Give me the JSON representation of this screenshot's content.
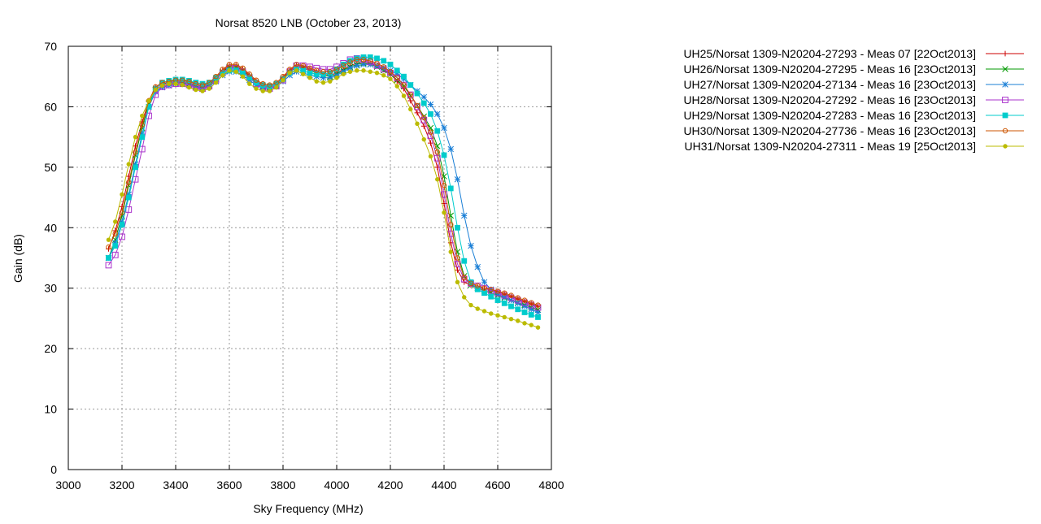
{
  "chart_data": {
    "type": "line",
    "title": "Norsat 8520 LNB (October 23, 2013)",
    "xlabel": "Sky Frequency (MHz)",
    "ylabel": "Gain (dB)",
    "xlim": [
      3000,
      4800
    ],
    "ylim": [
      0,
      70
    ],
    "xticks": [
      3000,
      3200,
      3400,
      3600,
      3800,
      4000,
      4200,
      4400,
      4600,
      4800
    ],
    "yticks": [
      0,
      10,
      20,
      30,
      40,
      50,
      60,
      70
    ],
    "grid": true,
    "legend_position": "right",
    "x": [
      3150,
      3175,
      3200,
      3225,
      3250,
      3275,
      3300,
      3325,
      3350,
      3375,
      3400,
      3425,
      3450,
      3475,
      3500,
      3525,
      3550,
      3575,
      3600,
      3625,
      3650,
      3675,
      3700,
      3725,
      3750,
      3775,
      3800,
      3825,
      3850,
      3875,
      3900,
      3925,
      3950,
      3975,
      4000,
      4025,
      4050,
      4075,
      4100,
      4125,
      4150,
      4175,
      4200,
      4225,
      4250,
      4275,
      4300,
      4325,
      4350,
      4375,
      4400,
      4425,
      4450,
      4475,
      4500,
      4525,
      4550,
      4575,
      4600,
      4625,
      4650,
      4675,
      4700,
      4725,
      4750
    ],
    "series": [
      {
        "name": "UH25/Norsat 1309-N20204-27293 - Meas 07 [22Oct2013]",
        "color": "#cc0000",
        "marker": "plus",
        "values": [
          36.5,
          39.5,
          43.5,
          48.5,
          53.5,
          57.5,
          61.0,
          63.2,
          63.8,
          64.0,
          64.2,
          64.2,
          64.0,
          63.6,
          63.4,
          63.8,
          64.8,
          66.0,
          66.8,
          66.8,
          66.2,
          65.2,
          64.2,
          63.6,
          63.4,
          63.8,
          64.8,
          66.0,
          66.8,
          66.6,
          66.2,
          65.8,
          65.4,
          65.2,
          65.6,
          66.2,
          66.8,
          67.2,
          67.4,
          67.2,
          66.8,
          66.2,
          65.4,
          64.2,
          63.0,
          61.0,
          59.0,
          56.8,
          54.0,
          50.0,
          44.0,
          37.5,
          33.0,
          31.0,
          30.5,
          30.2,
          30.0,
          29.7,
          29.4,
          29.0,
          28.6,
          28.2,
          27.8,
          27.4,
          27.0
        ]
      },
      {
        "name": "UH26/Norsat 1309-N20204-27295 - Meas 16 [23Oct2013]",
        "color": "#009900",
        "marker": "cross",
        "values": [
          35.0,
          38.0,
          42.0,
          47.0,
          52.0,
          56.5,
          60.5,
          62.8,
          63.5,
          63.8,
          64.0,
          64.0,
          63.8,
          63.4,
          63.2,
          63.6,
          64.6,
          65.8,
          66.6,
          66.6,
          66.0,
          65.0,
          64.0,
          63.4,
          63.2,
          63.6,
          64.6,
          65.8,
          66.6,
          66.4,
          66.0,
          65.6,
          65.2,
          65.0,
          65.4,
          66.0,
          66.6,
          67.0,
          67.2,
          67.0,
          66.6,
          66.0,
          65.4,
          64.4,
          63.4,
          61.8,
          60.2,
          58.4,
          56.5,
          53.5,
          48.5,
          42.0,
          36.0,
          32.0,
          30.5,
          30.0,
          29.6,
          29.2,
          28.8,
          28.4,
          28.0,
          27.6,
          27.2,
          26.8,
          26.4
        ]
      },
      {
        "name": "UH27/Norsat 1309-N20204-27134 - Meas 16 [23Oct2013]",
        "color": "#1a7fd6",
        "marker": "star",
        "values": [
          35.0,
          37.5,
          41.0,
          45.5,
          50.5,
          55.5,
          60.0,
          62.5,
          63.2,
          63.5,
          63.8,
          63.8,
          63.6,
          63.3,
          63.1,
          63.4,
          64.2,
          65.2,
          65.8,
          65.8,
          65.2,
          64.4,
          63.6,
          63.2,
          63.0,
          63.4,
          64.2,
          65.2,
          65.8,
          65.6,
          65.2,
          65.0,
          64.8,
          64.8,
          65.2,
          65.8,
          66.4,
          66.8,
          67.0,
          67.0,
          66.8,
          66.4,
          66.0,
          65.4,
          64.6,
          63.6,
          62.6,
          61.6,
          60.4,
          58.8,
          56.5,
          53.0,
          48.0,
          42.0,
          37.0,
          33.5,
          31.0,
          29.8,
          29.0,
          28.5,
          28.0,
          27.5,
          27.0,
          26.5,
          26.0
        ]
      },
      {
        "name": "UH28/Norsat 1309-N20204-27292 - Meas 16 [23Oct2013]",
        "color": "#aa33cc",
        "marker": "square-open",
        "values": [
          33.8,
          35.5,
          38.5,
          43.0,
          48.0,
          53.0,
          58.5,
          62.0,
          63.3,
          63.6,
          63.8,
          63.8,
          63.6,
          63.2,
          63.0,
          63.4,
          64.4,
          65.6,
          66.4,
          66.4,
          65.8,
          64.8,
          63.8,
          63.2,
          63.0,
          63.4,
          64.4,
          65.8,
          66.8,
          66.8,
          66.6,
          66.4,
          66.2,
          66.2,
          66.6,
          67.2,
          67.8,
          68.0,
          67.8,
          67.4,
          66.8,
          66.2,
          65.6,
          64.8,
          63.6,
          62.0,
          60.0,
          57.8,
          55.2,
          51.5,
          45.5,
          39.0,
          34.0,
          31.5,
          30.8,
          30.4,
          30.0,
          29.6,
          29.2,
          28.8,
          28.4,
          28.0,
          27.6,
          27.2,
          26.8
        ]
      },
      {
        "name": "UH29/Norsat 1309-N20204-27283 - Meas 16 [23Oct2013]",
        "color": "#00cccc",
        "marker": "square-filled",
        "values": [
          35.0,
          37.0,
          40.5,
          45.0,
          50.0,
          55.0,
          60.0,
          63.0,
          64.0,
          64.3,
          64.5,
          64.5,
          64.3,
          64.0,
          63.8,
          64.0,
          64.8,
          65.6,
          66.0,
          66.0,
          65.6,
          64.8,
          64.0,
          63.6,
          63.4,
          63.8,
          64.6,
          65.6,
          66.2,
          66.0,
          65.6,
          65.4,
          65.4,
          65.6,
          66.2,
          67.0,
          67.6,
          68.0,
          68.2,
          68.2,
          68.0,
          67.6,
          67.0,
          66.0,
          65.0,
          63.6,
          62.2,
          60.6,
          58.8,
          56.0,
          52.0,
          46.5,
          40.0,
          34.5,
          31.0,
          29.8,
          29.2,
          28.6,
          28.0,
          27.5,
          27.0,
          26.5,
          26.0,
          25.6,
          25.2
        ]
      },
      {
        "name": "UH30/Norsat 1309-N20204-27736 - Meas 16 [23Oct2013]",
        "color": "#cc5500",
        "marker": "circle-open",
        "values": [
          36.8,
          39.0,
          42.5,
          47.5,
          52.5,
          57.0,
          61.0,
          63.3,
          64.0,
          64.2,
          64.4,
          64.4,
          64.2,
          63.8,
          63.6,
          64.0,
          65.0,
          66.2,
          67.0,
          67.0,
          66.4,
          65.4,
          64.4,
          63.8,
          63.6,
          64.0,
          65.0,
          66.2,
          67.0,
          66.8,
          66.4,
          66.0,
          65.8,
          65.8,
          66.2,
          66.8,
          67.4,
          67.8,
          67.8,
          67.6,
          67.2,
          66.6,
          65.8,
          64.8,
          63.6,
          62.0,
          60.2,
          58.2,
          55.8,
          52.5,
          47.0,
          40.5,
          35.0,
          31.8,
          30.8,
          30.4,
          30.0,
          29.8,
          29.5,
          29.2,
          28.8,
          28.4,
          28.0,
          27.6,
          27.2
        ]
      },
      {
        "name": "UH31/Norsat 1309-N20204-27311 - Meas 19 [25Oct2013]",
        "color": "#bbbb00",
        "marker": "circle-filled",
        "values": [
          38.0,
          41.0,
          45.5,
          50.5,
          55.0,
          58.5,
          61.0,
          62.8,
          63.5,
          63.8,
          63.8,
          63.6,
          63.2,
          62.8,
          62.6,
          63.0,
          64.0,
          65.2,
          66.0,
          65.8,
          65.0,
          63.8,
          63.0,
          62.6,
          62.6,
          63.2,
          64.4,
          65.6,
          66.0,
          65.4,
          64.8,
          64.2,
          64.0,
          64.2,
          64.8,
          65.4,
          65.8,
          66.0,
          66.0,
          65.8,
          65.6,
          65.2,
          64.6,
          63.4,
          61.8,
          59.6,
          57.2,
          54.6,
          51.8,
          48.0,
          42.5,
          36.0,
          31.0,
          28.5,
          27.2,
          26.6,
          26.2,
          25.8,
          25.5,
          25.2,
          24.9,
          24.6,
          24.2,
          23.9,
          23.5
        ]
      }
    ]
  }
}
